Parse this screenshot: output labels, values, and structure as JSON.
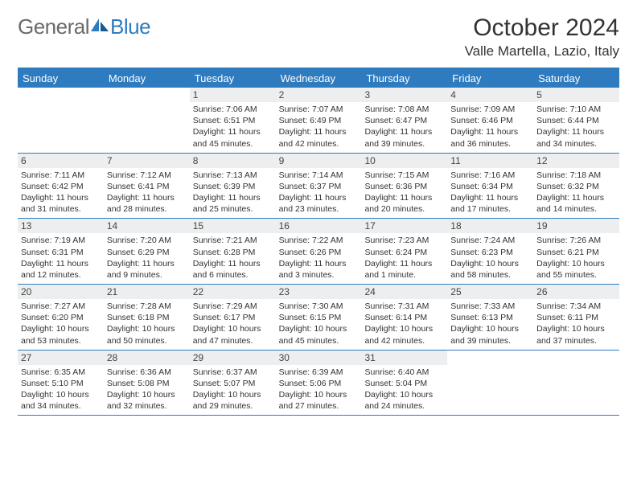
{
  "logo": {
    "text1": "General",
    "text2": "Blue",
    "icon_color": "#2f7bbf",
    "text1_color": "#6b6b6b",
    "text2_color": "#2f7bbf"
  },
  "title": "October 2024",
  "location": "Valle Martella, Lazio, Italy",
  "colors": {
    "header_bg": "#2f7bbf",
    "header_text": "#ffffff",
    "daynum_bg": "#eceeef",
    "border": "#2f7bbf"
  },
  "day_names": [
    "Sunday",
    "Monday",
    "Tuesday",
    "Wednesday",
    "Thursday",
    "Friday",
    "Saturday"
  ],
  "weeks": [
    [
      null,
      null,
      {
        "n": "1",
        "sr": "7:06 AM",
        "ss": "6:51 PM",
        "dl": "11 hours and 45 minutes."
      },
      {
        "n": "2",
        "sr": "7:07 AM",
        "ss": "6:49 PM",
        "dl": "11 hours and 42 minutes."
      },
      {
        "n": "3",
        "sr": "7:08 AM",
        "ss": "6:47 PM",
        "dl": "11 hours and 39 minutes."
      },
      {
        "n": "4",
        "sr": "7:09 AM",
        "ss": "6:46 PM",
        "dl": "11 hours and 36 minutes."
      },
      {
        "n": "5",
        "sr": "7:10 AM",
        "ss": "6:44 PM",
        "dl": "11 hours and 34 minutes."
      }
    ],
    [
      {
        "n": "6",
        "sr": "7:11 AM",
        "ss": "6:42 PM",
        "dl": "11 hours and 31 minutes."
      },
      {
        "n": "7",
        "sr": "7:12 AM",
        "ss": "6:41 PM",
        "dl": "11 hours and 28 minutes."
      },
      {
        "n": "8",
        "sr": "7:13 AM",
        "ss": "6:39 PM",
        "dl": "11 hours and 25 minutes."
      },
      {
        "n": "9",
        "sr": "7:14 AM",
        "ss": "6:37 PM",
        "dl": "11 hours and 23 minutes."
      },
      {
        "n": "10",
        "sr": "7:15 AM",
        "ss": "6:36 PM",
        "dl": "11 hours and 20 minutes."
      },
      {
        "n": "11",
        "sr": "7:16 AM",
        "ss": "6:34 PM",
        "dl": "11 hours and 17 minutes."
      },
      {
        "n": "12",
        "sr": "7:18 AM",
        "ss": "6:32 PM",
        "dl": "11 hours and 14 minutes."
      }
    ],
    [
      {
        "n": "13",
        "sr": "7:19 AM",
        "ss": "6:31 PM",
        "dl": "11 hours and 12 minutes."
      },
      {
        "n": "14",
        "sr": "7:20 AM",
        "ss": "6:29 PM",
        "dl": "11 hours and 9 minutes."
      },
      {
        "n": "15",
        "sr": "7:21 AM",
        "ss": "6:28 PM",
        "dl": "11 hours and 6 minutes."
      },
      {
        "n": "16",
        "sr": "7:22 AM",
        "ss": "6:26 PM",
        "dl": "11 hours and 3 minutes."
      },
      {
        "n": "17",
        "sr": "7:23 AM",
        "ss": "6:24 PM",
        "dl": "11 hours and 1 minute."
      },
      {
        "n": "18",
        "sr": "7:24 AM",
        "ss": "6:23 PM",
        "dl": "10 hours and 58 minutes."
      },
      {
        "n": "19",
        "sr": "7:26 AM",
        "ss": "6:21 PM",
        "dl": "10 hours and 55 minutes."
      }
    ],
    [
      {
        "n": "20",
        "sr": "7:27 AM",
        "ss": "6:20 PM",
        "dl": "10 hours and 53 minutes."
      },
      {
        "n": "21",
        "sr": "7:28 AM",
        "ss": "6:18 PM",
        "dl": "10 hours and 50 minutes."
      },
      {
        "n": "22",
        "sr": "7:29 AM",
        "ss": "6:17 PM",
        "dl": "10 hours and 47 minutes."
      },
      {
        "n": "23",
        "sr": "7:30 AM",
        "ss": "6:15 PM",
        "dl": "10 hours and 45 minutes."
      },
      {
        "n": "24",
        "sr": "7:31 AM",
        "ss": "6:14 PM",
        "dl": "10 hours and 42 minutes."
      },
      {
        "n": "25",
        "sr": "7:33 AM",
        "ss": "6:13 PM",
        "dl": "10 hours and 39 minutes."
      },
      {
        "n": "26",
        "sr": "7:34 AM",
        "ss": "6:11 PM",
        "dl": "10 hours and 37 minutes."
      }
    ],
    [
      {
        "n": "27",
        "sr": "6:35 AM",
        "ss": "5:10 PM",
        "dl": "10 hours and 34 minutes."
      },
      {
        "n": "28",
        "sr": "6:36 AM",
        "ss": "5:08 PM",
        "dl": "10 hours and 32 minutes."
      },
      {
        "n": "29",
        "sr": "6:37 AM",
        "ss": "5:07 PM",
        "dl": "10 hours and 29 minutes."
      },
      {
        "n": "30",
        "sr": "6:39 AM",
        "ss": "5:06 PM",
        "dl": "10 hours and 27 minutes."
      },
      {
        "n": "31",
        "sr": "6:40 AM",
        "ss": "5:04 PM",
        "dl": "10 hours and 24 minutes."
      },
      null,
      null
    ]
  ],
  "labels": {
    "sunrise": "Sunrise:",
    "sunset": "Sunset:",
    "daylight": "Daylight:"
  }
}
